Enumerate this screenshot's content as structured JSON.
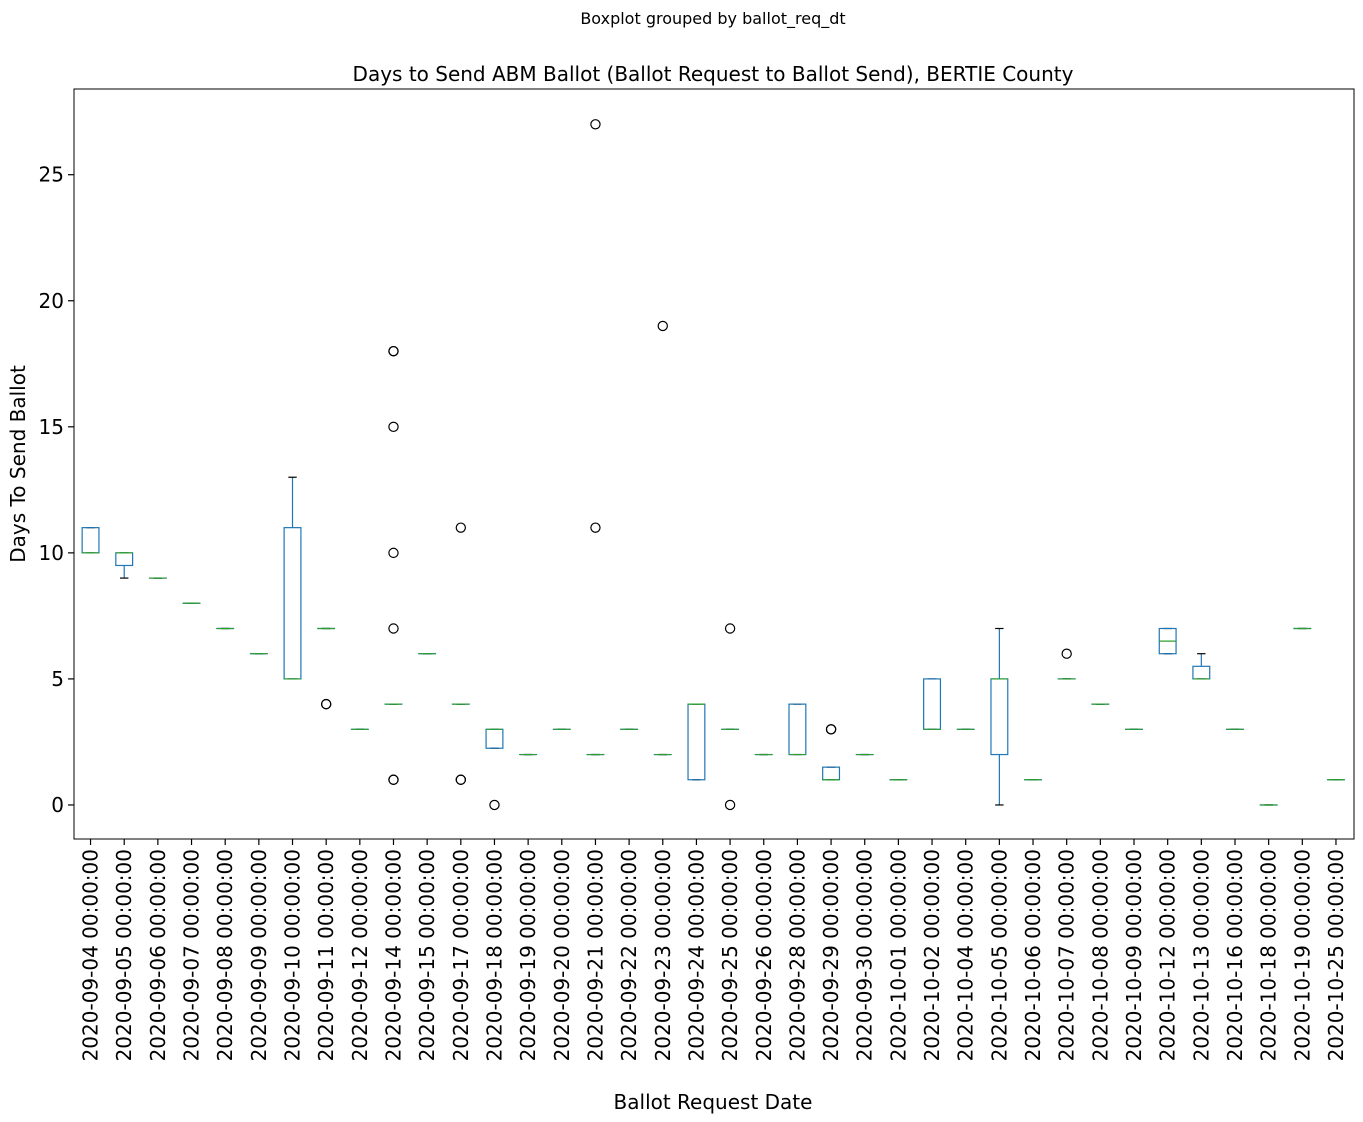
{
  "chart_data": {
    "type": "boxplot",
    "suptitle": "Boxplot grouped by ballot_req_dt",
    "title": "Days to Send ABM Ballot (Ballot Request to Ballot Send), BERTIE County",
    "xlabel": "Ballot Request Date",
    "ylabel": "Days To Send Ballot",
    "ylim": [
      -1.35,
      28.4
    ],
    "yticks": [
      0,
      5,
      10,
      15,
      20,
      25
    ],
    "grid": false,
    "colors": {
      "box": "#1f77b4",
      "median": "#2ca02c",
      "whisker": "#1f77b4",
      "cap": "#000000",
      "flier": "#000000"
    },
    "categories": [
      "2020-09-04 00:00:00",
      "2020-09-05 00:00:00",
      "2020-09-06 00:00:00",
      "2020-09-07 00:00:00",
      "2020-09-08 00:00:00",
      "2020-09-09 00:00:00",
      "2020-09-10 00:00:00",
      "2020-09-11 00:00:00",
      "2020-09-12 00:00:00",
      "2020-09-14 00:00:00",
      "2020-09-15 00:00:00",
      "2020-09-17 00:00:00",
      "2020-09-18 00:00:00",
      "2020-09-19 00:00:00",
      "2020-09-20 00:00:00",
      "2020-09-21 00:00:00",
      "2020-09-22 00:00:00",
      "2020-09-23 00:00:00",
      "2020-09-24 00:00:00",
      "2020-09-25 00:00:00",
      "2020-09-26 00:00:00",
      "2020-09-28 00:00:00",
      "2020-09-29 00:00:00",
      "2020-09-30 00:00:00",
      "2020-10-01 00:00:00",
      "2020-10-02 00:00:00",
      "2020-10-04 00:00:00",
      "2020-10-05 00:00:00",
      "2020-10-06 00:00:00",
      "2020-10-07 00:00:00",
      "2020-10-08 00:00:00",
      "2020-10-09 00:00:00",
      "2020-10-12 00:00:00",
      "2020-10-13 00:00:00",
      "2020-10-16 00:00:00",
      "2020-10-18 00:00:00",
      "2020-10-19 00:00:00",
      "2020-10-25 00:00:00"
    ],
    "boxes": [
      {
        "low": 10,
        "q1": 10,
        "median": 10,
        "q3": 11,
        "high": 11,
        "fliers": []
      },
      {
        "low": 9,
        "q1": 9.5,
        "median": 10,
        "q3": 10,
        "high": 10,
        "fliers": []
      },
      {
        "low": 9,
        "q1": 9,
        "median": 9,
        "q3": 9,
        "high": 9,
        "fliers": []
      },
      {
        "low": 8,
        "q1": 8,
        "median": 8,
        "q3": 8,
        "high": 8,
        "fliers": []
      },
      {
        "low": 7,
        "q1": 7,
        "median": 7,
        "q3": 7,
        "high": 7,
        "fliers": []
      },
      {
        "low": 6,
        "q1": 6,
        "median": 6,
        "q3": 6,
        "high": 6,
        "fliers": []
      },
      {
        "low": 5,
        "q1": 5,
        "median": 5,
        "q3": 11,
        "high": 13,
        "fliers": []
      },
      {
        "low": 7,
        "q1": 7,
        "median": 7,
        "q3": 7,
        "high": 7,
        "fliers": [
          4,
          4
        ]
      },
      {
        "low": 3,
        "q1": 3,
        "median": 3,
        "q3": 3,
        "high": 3,
        "fliers": []
      },
      {
        "low": 4,
        "q1": 4,
        "median": 4,
        "q3": 4,
        "high": 4,
        "fliers": [
          1,
          1,
          7,
          10,
          15,
          18,
          18
        ]
      },
      {
        "low": 6,
        "q1": 6,
        "median": 6,
        "q3": 6,
        "high": 6,
        "fliers": []
      },
      {
        "low": 4,
        "q1": 4,
        "median": 4,
        "q3": 4,
        "high": 4,
        "fliers": [
          1,
          1,
          11
        ]
      },
      {
        "low": 2.25,
        "q1": 2.25,
        "median": 3,
        "q3": 3,
        "high": 3,
        "fliers": [
          0
        ]
      },
      {
        "low": 2,
        "q1": 2,
        "median": 2,
        "q3": 2,
        "high": 2,
        "fliers": []
      },
      {
        "low": 3,
        "q1": 3,
        "median": 3,
        "q3": 3,
        "high": 3,
        "fliers": []
      },
      {
        "low": 2,
        "q1": 2,
        "median": 2,
        "q3": 2,
        "high": 2,
        "fliers": [
          11,
          27
        ]
      },
      {
        "low": 3,
        "q1": 3,
        "median": 3,
        "q3": 3,
        "high": 3,
        "fliers": []
      },
      {
        "low": 2,
        "q1": 2,
        "median": 2,
        "q3": 2,
        "high": 2,
        "fliers": [
          19
        ]
      },
      {
        "low": 1,
        "q1": 1,
        "median": 4,
        "q3": 4,
        "high": 4,
        "fliers": []
      },
      {
        "low": 3,
        "q1": 3,
        "median": 3,
        "q3": 3,
        "high": 3,
        "fliers": [
          0,
          7
        ]
      },
      {
        "low": 2,
        "q1": 2,
        "median": 2,
        "q3": 2,
        "high": 2,
        "fliers": []
      },
      {
        "low": 2,
        "q1": 2,
        "median": 2,
        "q3": 4,
        "high": 4,
        "fliers": []
      },
      {
        "low": 1,
        "q1": 1,
        "median": 1,
        "q3": 1.5,
        "high": 1.5,
        "fliers": [
          3,
          3
        ]
      },
      {
        "low": 2,
        "q1": 2,
        "median": 2,
        "q3": 2,
        "high": 2,
        "fliers": []
      },
      {
        "low": 1,
        "q1": 1,
        "median": 1,
        "q3": 1,
        "high": 1,
        "fliers": []
      },
      {
        "low": 3,
        "q1": 3,
        "median": 3,
        "q3": 5,
        "high": 5,
        "fliers": []
      },
      {
        "low": 3,
        "q1": 3,
        "median": 3,
        "q3": 3,
        "high": 3,
        "fliers": []
      },
      {
        "low": 0,
        "q1": 2,
        "median": 5,
        "q3": 5,
        "high": 7,
        "fliers": []
      },
      {
        "low": 1,
        "q1": 1,
        "median": 1,
        "q3": 1,
        "high": 1,
        "fliers": []
      },
      {
        "low": 5,
        "q1": 5,
        "median": 5,
        "q3": 5,
        "high": 5,
        "fliers": [
          6
        ]
      },
      {
        "low": 4,
        "q1": 4,
        "median": 4,
        "q3": 4,
        "high": 4,
        "fliers": []
      },
      {
        "low": 3,
        "q1": 3,
        "median": 3,
        "q3": 3,
        "high": 3,
        "fliers": []
      },
      {
        "low": 6,
        "q1": 6,
        "median": 6.5,
        "q3": 7,
        "high": 7,
        "fliers": []
      },
      {
        "low": 5,
        "q1": 5,
        "median": 5,
        "q3": 5.5,
        "high": 6,
        "fliers": []
      },
      {
        "low": 3,
        "q1": 3,
        "median": 3,
        "q3": 3,
        "high": 3,
        "fliers": []
      },
      {
        "low": 0,
        "q1": 0,
        "median": 0,
        "q3": 0,
        "high": 0,
        "fliers": []
      },
      {
        "low": 7,
        "q1": 7,
        "median": 7,
        "q3": 7,
        "high": 7,
        "fliers": []
      },
      {
        "low": 1,
        "q1": 1,
        "median": 1,
        "q3": 1,
        "high": 1,
        "fliers": []
      }
    ]
  }
}
